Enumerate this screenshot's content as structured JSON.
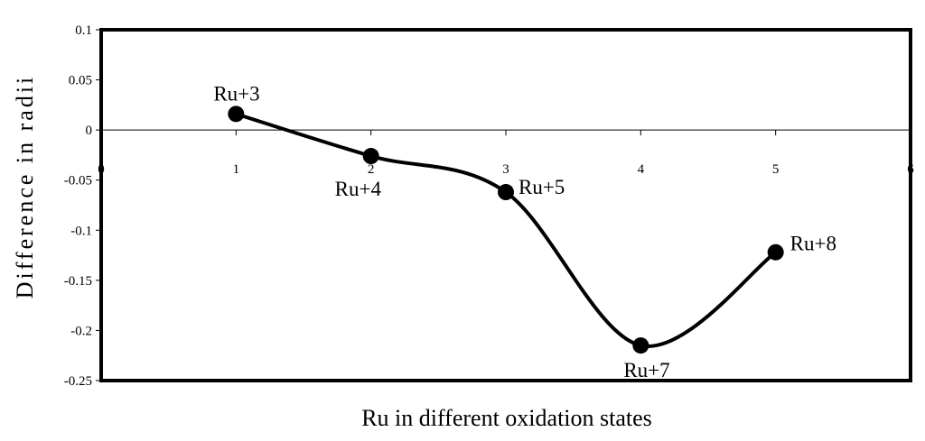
{
  "chart_data": {
    "type": "line",
    "xlabel": "Ru in different oxidation states",
    "ylabel": "Difference in radii",
    "xlim": [
      0,
      6
    ],
    "ylim": [
      -0.25,
      0.1
    ],
    "x_ticks": [
      "0",
      "1",
      "2",
      "3",
      "4",
      "5",
      "6"
    ],
    "y_ticks": [
      "0.1",
      "0.05",
      "0",
      "-0.05",
      "-0.1",
      "-0.15",
      "-0.2",
      "-0.25"
    ],
    "grid": false,
    "smooth": true,
    "line_color": "#000000",
    "series": [
      {
        "x": [
          1,
          2,
          3,
          4,
          5
        ],
        "y": [
          0.016,
          -0.026,
          -0.062,
          -0.215,
          -0.122
        ],
        "labels": [
          "Ru+3",
          "Ru+4",
          "Ru+5",
          "Ru+7",
          "Ru+8"
        ]
      }
    ]
  }
}
